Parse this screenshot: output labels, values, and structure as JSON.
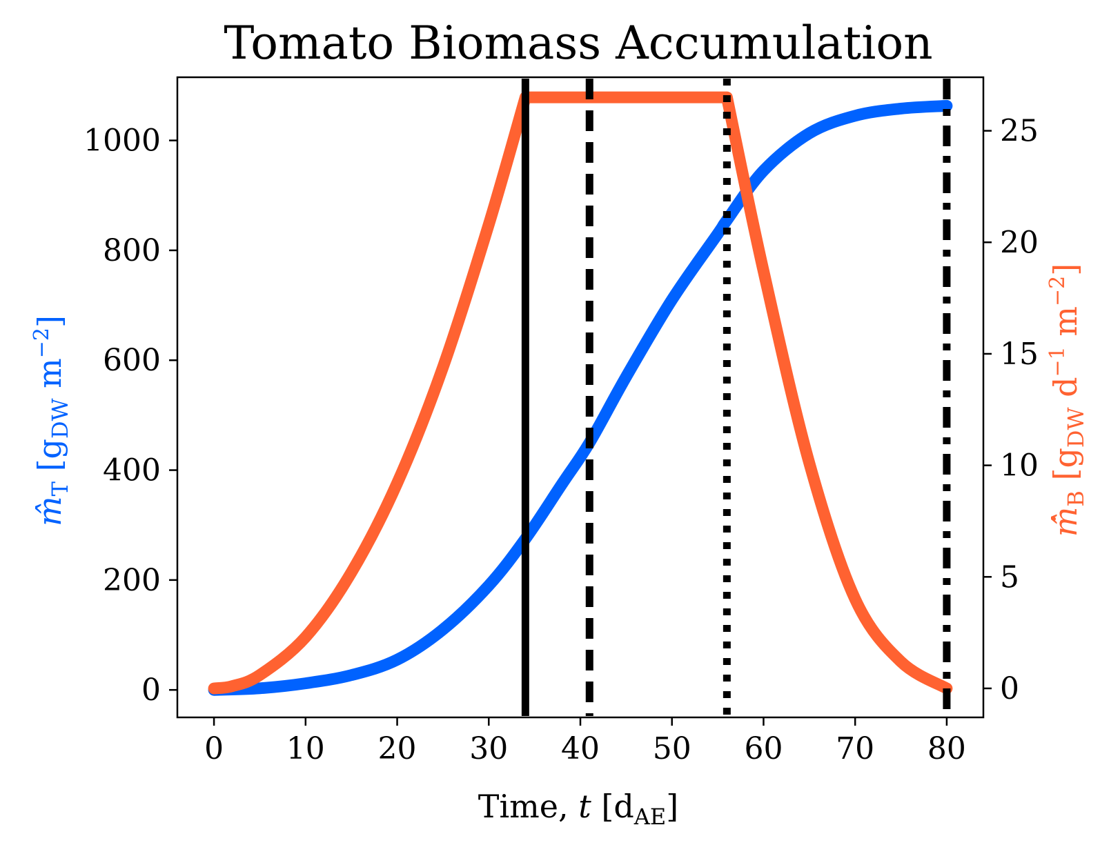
{
  "chart_data": {
    "type": "line",
    "title": "Tomato Biomass Accumulation",
    "xlabel": {
      "prefix": "Time, ",
      "var": "t",
      "bracket_open": " [d",
      "sub": "AE",
      "bracket_close": "]"
    },
    "ylabel_left": {
      "var": "m̂",
      "sub": "T",
      "open": " [g",
      "unit_sub": "DW",
      "unit": " m",
      "sup": "−2",
      "close": "]"
    },
    "ylabel_right": {
      "var": "m̂̇",
      "sub": "B",
      "open": " [g",
      "unit_sub": "DW",
      "unit": " d",
      "sup1": "−1",
      "unit2": " m",
      "sup2": "−2",
      "close": "]"
    },
    "xlim": [
      -4,
      84
    ],
    "ylim_left": [
      -50,
      1115
    ],
    "ylim_right": [
      -1.3,
      27.4
    ],
    "xticks": [
      0,
      10,
      20,
      30,
      40,
      50,
      60,
      70,
      80
    ],
    "yticks_left": [
      0,
      200,
      400,
      600,
      800,
      1000
    ],
    "yticks_right": [
      0,
      5,
      10,
      15,
      20,
      25
    ],
    "grid": false,
    "colors": {
      "left_series": "#0062ff",
      "right_series": "#ff6231",
      "vlines": "#000000"
    },
    "series": [
      {
        "axis": "left",
        "x": [
          0,
          5,
          10,
          15,
          20,
          25,
          30,
          34,
          38,
          41,
          45,
          50,
          55,
          56,
          60,
          65,
          70,
          75,
          80
        ],
        "values": [
          0,
          3,
          12,
          27,
          55,
          110,
          190,
          275,
          375,
          450,
          570,
          710,
          830,
          855,
          945,
          1013,
          1045,
          1058,
          1063
        ]
      },
      {
        "axis": "right",
        "x": [
          0,
          2,
          5,
          10,
          15,
          20,
          25,
          30,
          34,
          40,
          50,
          56,
          60,
          65,
          70,
          75,
          80
        ],
        "values": [
          0,
          0.1,
          0.6,
          2.3,
          5.2,
          9.2,
          14.4,
          20.8,
          26.5,
          26.5,
          26.5,
          26.5,
          18.7,
          10.1,
          4.0,
          1.2,
          0
        ]
      }
    ],
    "vlines": [
      {
        "x": 34,
        "style": "solid"
      },
      {
        "x": 41,
        "style": "dashed"
      },
      {
        "x": 56,
        "style": "dotted"
      },
      {
        "x": 80,
        "style": "dashdot"
      }
    ]
  }
}
